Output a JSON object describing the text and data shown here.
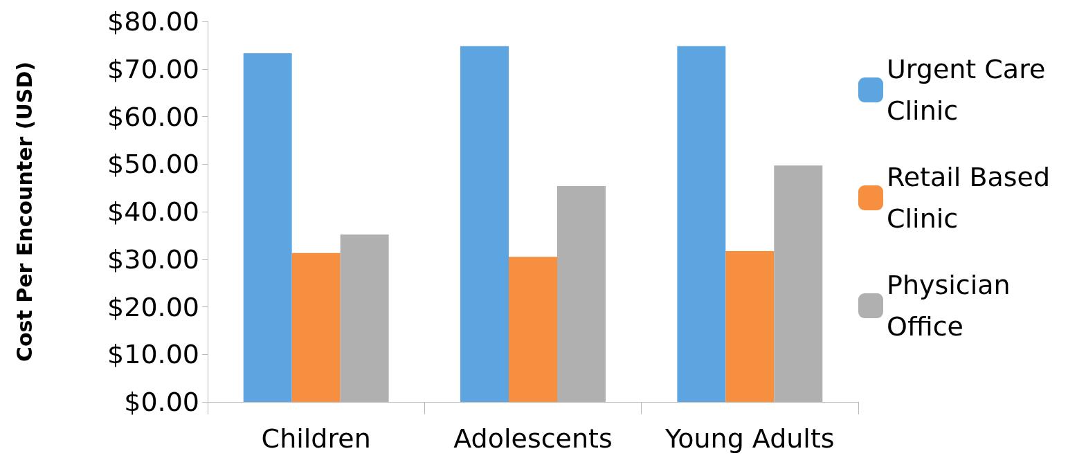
{
  "chart_data": {
    "type": "bar",
    "ylabel": "Cost Per Encounter (USD)",
    "categories": [
      "Children",
      "Adolescents",
      "Young Adults"
    ],
    "series": [
      {
        "name": "Urgent Care Clinic",
        "color": "#5da5e0",
        "values": [
          73.3,
          74.8,
          74.8
        ]
      },
      {
        "name": "Retail Based Clinic",
        "color": "#f68f3f",
        "values": [
          31.3,
          30.5,
          31.7
        ]
      },
      {
        "name": "Physician Office",
        "color": "#b0b0b0",
        "values": [
          35.2,
          45.4,
          49.7
        ]
      }
    ],
    "ylim": [
      0,
      80
    ],
    "yticks": [
      {
        "value": 0,
        "label": "$0.00"
      },
      {
        "value": 10,
        "label": "$10.00"
      },
      {
        "value": 20,
        "label": "$20.00"
      },
      {
        "value": 30,
        "label": "$30.00"
      },
      {
        "value": 40,
        "label": "$40.00"
      },
      {
        "value": 50,
        "label": "$50.00"
      },
      {
        "value": 60,
        "label": "$60.00"
      },
      {
        "value": 70,
        "label": "$70.00"
      },
      {
        "value": 80,
        "label": "$80.00"
      }
    ],
    "grid": false,
    "legend": "right"
  }
}
